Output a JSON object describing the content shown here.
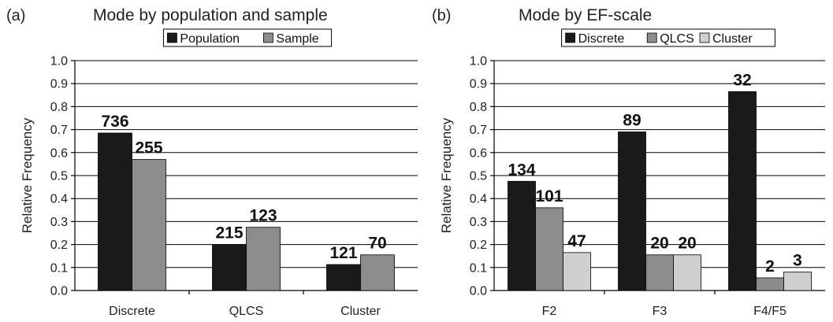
{
  "chart_data": [
    {
      "type": "bar",
      "panel": "(a)",
      "title": "Mode by population and sample",
      "ylabel": "Relative Frequency",
      "xlabel": "",
      "ylim": [
        0,
        1.0
      ],
      "yticks": [
        "0.0",
        "0.1",
        "0.2",
        "0.3",
        "0.4",
        "0.5",
        "0.6",
        "0.7",
        "0.8",
        "0.9",
        "1.0"
      ],
      "grid": true,
      "legend_position": "top",
      "categories": [
        "Discrete",
        "QLCS",
        "Cluster"
      ],
      "series": [
        {
          "name": "Population",
          "color": "#1a1a1a",
          "values": [
            0.685,
            0.2,
            0.113
          ],
          "labels": [
            "736",
            "215",
            "121"
          ]
        },
        {
          "name": "Sample",
          "color": "#8c8c8c",
          "values": [
            0.57,
            0.275,
            0.155
          ],
          "labels": [
            "255",
            "123",
            "70"
          ]
        }
      ]
    },
    {
      "type": "bar",
      "panel": "(b)",
      "title": "Mode by EF-scale",
      "ylabel": "Relative Frequency",
      "xlabel": "",
      "ylim": [
        0,
        1.0
      ],
      "yticks": [
        "0.0",
        "0.1",
        "0.2",
        "0.3",
        "0.4",
        "0.5",
        "0.6",
        "0.7",
        "0.8",
        "0.9",
        "1.0"
      ],
      "grid": true,
      "legend_position": "top",
      "categories": [
        "F2",
        "F3",
        "F4/F5"
      ],
      "series": [
        {
          "name": "Discrete",
          "color": "#1a1a1a",
          "values": [
            0.475,
            0.69,
            0.865
          ],
          "labels": [
            "134",
            "89",
            "32"
          ]
        },
        {
          "name": "QLCS",
          "color": "#8c8c8c",
          "values": [
            0.36,
            0.155,
            0.055
          ],
          "labels": [
            "101",
            "20",
            "2"
          ]
        },
        {
          "name": "Cluster",
          "color": "#cfcfcf",
          "values": [
            0.165,
            0.155,
            0.08
          ],
          "labels": [
            "47",
            "20",
            "3"
          ]
        }
      ]
    }
  ]
}
